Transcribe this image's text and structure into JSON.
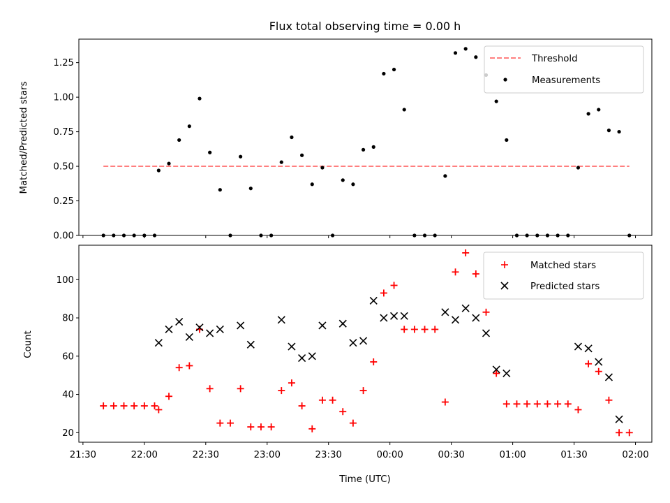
{
  "chart_data": [
    {
      "type": "scatter",
      "title": "Flux total observing time = 0.00 h",
      "xlabel": "",
      "ylabel": "Matched/Predicted stars",
      "ylim": [
        0,
        1.42
      ],
      "xlim": [
        "21:28",
        "02:08"
      ],
      "yticks": [
        "0.00",
        "0.25",
        "0.50",
        "0.75",
        "1.00",
        "1.25"
      ],
      "xticks": [
        "21:30",
        "22:00",
        "22:30",
        "23:00",
        "23:30",
        "00:00",
        "00:30",
        "01:00",
        "01:30",
        "02:00"
      ],
      "show_xtick_labels": false,
      "grid": false,
      "legend_position": "top-right",
      "threshold": {
        "name": "Threshold",
        "value": 0.5,
        "x_start": "21:40",
        "x_end": "01:57",
        "color": "#ff7f7f"
      },
      "series": [
        {
          "name": "Measurements",
          "color": "#000000",
          "points": [
            [
              "21:40",
              0
            ],
            [
              "21:45",
              0
            ],
            [
              "21:50",
              0
            ],
            [
              "21:55",
              0
            ],
            [
              "22:00",
              0
            ],
            [
              "22:05",
              0
            ],
            [
              "22:07",
              0.47
            ],
            [
              "22:12",
              0.52
            ],
            [
              "22:17",
              0.69
            ],
            [
              "22:22",
              0.79
            ],
            [
              "22:27",
              0.99
            ],
            [
              "22:32",
              0.6
            ],
            [
              "22:37",
              0.33
            ],
            [
              "22:42",
              0
            ],
            [
              "22:47",
              0.57
            ],
            [
              "22:52",
              0.34
            ],
            [
              "22:57",
              0
            ],
            [
              "23:02",
              0
            ],
            [
              "23:07",
              0.53
            ],
            [
              "23:12",
              0.71
            ],
            [
              "23:17",
              0.58
            ],
            [
              "23:22",
              0.37
            ],
            [
              "23:27",
              0.49
            ],
            [
              "23:32",
              0
            ],
            [
              "23:37",
              0.4
            ],
            [
              "23:42",
              0.37
            ],
            [
              "23:47",
              0.62
            ],
            [
              "23:52",
              0.64
            ],
            [
              "23:57",
              1.17
            ],
            [
              "00:02",
              1.2
            ],
            [
              "00:07",
              0.91
            ],
            [
              "00:12",
              0
            ],
            [
              "00:17",
              0
            ],
            [
              "00:22",
              0
            ],
            [
              "00:27",
              0.43
            ],
            [
              "00:32",
              1.32
            ],
            [
              "00:37",
              1.35
            ],
            [
              "00:42",
              1.29
            ],
            [
              "00:47",
              1.16
            ],
            [
              "00:52",
              0.97
            ],
            [
              "00:57",
              0.69
            ],
            [
              "01:02",
              0
            ],
            [
              "01:07",
              0
            ],
            [
              "01:12",
              0
            ],
            [
              "01:17",
              0
            ],
            [
              "01:22",
              0
            ],
            [
              "01:27",
              0
            ],
            [
              "01:32",
              0.49
            ],
            [
              "01:37",
              0.88
            ],
            [
              "01:42",
              0.91
            ],
            [
              "01:47",
              0.76
            ],
            [
              "01:52",
              0.75
            ],
            [
              "01:57",
              0
            ]
          ]
        }
      ]
    },
    {
      "type": "scatter",
      "title": "",
      "xlabel": "Time (UTC)",
      "ylabel": "Count",
      "ylim": [
        15,
        118
      ],
      "xlim": [
        "21:28",
        "02:08"
      ],
      "yticks": [
        "20",
        "40",
        "60",
        "80",
        "100"
      ],
      "xticks": [
        "21:30",
        "22:00",
        "22:30",
        "23:00",
        "23:30",
        "00:00",
        "00:30",
        "01:00",
        "01:30",
        "02:00"
      ],
      "show_xtick_labels": true,
      "grid": false,
      "legend_position": "top-right",
      "series": [
        {
          "name": "Matched stars",
          "marker": "plus",
          "color": "#ff0000",
          "points": [
            [
              "21:40",
              34
            ],
            [
              "21:45",
              34
            ],
            [
              "21:50",
              34
            ],
            [
              "21:55",
              34
            ],
            [
              "22:00",
              34
            ],
            [
              "22:05",
              34
            ],
            [
              "22:07",
              32
            ],
            [
              "22:12",
              39
            ],
            [
              "22:17",
              54
            ],
            [
              "22:22",
              55
            ],
            [
              "22:27",
              74
            ],
            [
              "22:32",
              43
            ],
            [
              "22:37",
              25
            ],
            [
              "22:42",
              25
            ],
            [
              "22:47",
              43
            ],
            [
              "22:52",
              23
            ],
            [
              "22:57",
              23
            ],
            [
              "23:02",
              23
            ],
            [
              "23:07",
              42
            ],
            [
              "23:12",
              46
            ],
            [
              "23:17",
              34
            ],
            [
              "23:22",
              22
            ],
            [
              "23:27",
              37
            ],
            [
              "23:32",
              37
            ],
            [
              "23:37",
              31
            ],
            [
              "23:42",
              25
            ],
            [
              "23:47",
              42
            ],
            [
              "23:52",
              57
            ],
            [
              "23:57",
              93
            ],
            [
              "00:02",
              97
            ],
            [
              "00:07",
              74
            ],
            [
              "00:12",
              74
            ],
            [
              "00:17",
              74
            ],
            [
              "00:22",
              74
            ],
            [
              "00:27",
              36
            ],
            [
              "00:32",
              104
            ],
            [
              "00:37",
              114
            ],
            [
              "00:42",
              103
            ],
            [
              "00:47",
              83
            ],
            [
              "00:52",
              51
            ],
            [
              "00:57",
              35
            ],
            [
              "01:02",
              35
            ],
            [
              "01:07",
              35
            ],
            [
              "01:12",
              35
            ],
            [
              "01:17",
              35
            ],
            [
              "01:22",
              35
            ],
            [
              "01:27",
              35
            ],
            [
              "01:32",
              32
            ],
            [
              "01:37",
              56
            ],
            [
              "01:42",
              52
            ],
            [
              "01:47",
              37
            ],
            [
              "01:52",
              20
            ],
            [
              "01:57",
              20
            ]
          ]
        },
        {
          "name": "Predicted stars",
          "marker": "x",
          "color": "#000000",
          "points": [
            [
              "22:07",
              67
            ],
            [
              "22:12",
              74
            ],
            [
              "22:17",
              78
            ],
            [
              "22:22",
              70
            ],
            [
              "22:27",
              75
            ],
            [
              "22:32",
              72
            ],
            [
              "22:37",
              74
            ],
            [
              "22:47",
              76
            ],
            [
              "22:52",
              66
            ],
            [
              "23:07",
              79
            ],
            [
              "23:12",
              65
            ],
            [
              "23:17",
              59
            ],
            [
              "23:22",
              60
            ],
            [
              "23:27",
              76
            ],
            [
              "23:37",
              77
            ],
            [
              "23:42",
              67
            ],
            [
              "23:47",
              68
            ],
            [
              "23:52",
              89
            ],
            [
              "23:57",
              80
            ],
            [
              "00:02",
              81
            ],
            [
              "00:07",
              81
            ],
            [
              "00:27",
              83
            ],
            [
              "00:32",
              79
            ],
            [
              "00:37",
              85
            ],
            [
              "00:42",
              80
            ],
            [
              "00:47",
              72
            ],
            [
              "00:52",
              53
            ],
            [
              "00:57",
              51
            ],
            [
              "01:32",
              65
            ],
            [
              "01:37",
              64
            ],
            [
              "01:42",
              57
            ],
            [
              "01:47",
              49
            ],
            [
              "01:52",
              27
            ]
          ]
        }
      ]
    }
  ]
}
